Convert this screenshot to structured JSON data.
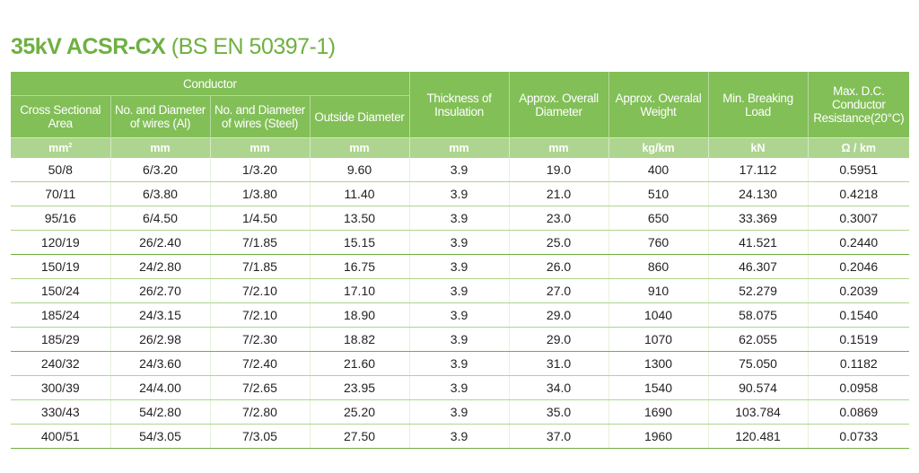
{
  "title": {
    "bold": "35kV ACSR-CX",
    "normal": " (BS EN 50397-1)"
  },
  "colors": {
    "title_green": "#6fb041",
    "header_bg": "#82bf57",
    "unit_bg": "#aed58f"
  },
  "headers": {
    "conductor_group": "Conductor",
    "cross_sectional_area": "Cross Sectional Area",
    "no_diameter_al": "No. and Diameter of wires (Al)",
    "no_diameter_steel": "No. and Diameter of wires (Steel)",
    "outside_diameter": "Outside Diameter",
    "thickness_insulation": "Thickness of Insulation",
    "overall_diameter": "Approx. Overall Diameter",
    "overall_weight": "Approx. Overalal Weight",
    "breaking_load": "Min. Breaking Load",
    "dc_resistance": "Max. D.C. Conductor Resistance(20°C)"
  },
  "units": {
    "area_base": "mm",
    "area_exp": "2",
    "al": "mm",
    "steel": "mm",
    "outside": "mm",
    "insulation": "mm",
    "overall_dia": "mm",
    "weight": "kg/km",
    "load": "kN",
    "resistance": "Ω / km"
  },
  "rows": [
    [
      "50/8",
      "6/3.20",
      "1/3.20",
      "9.60",
      "3.9",
      "19.0",
      "400",
      "17.112",
      "0.5951"
    ],
    [
      "70/11",
      "6/3.80",
      "1/3.80",
      "11.40",
      "3.9",
      "21.0",
      "510",
      "24.130",
      "0.4218"
    ],
    [
      "95/16",
      "6/4.50",
      "1/4.50",
      "13.50",
      "3.9",
      "23.0",
      "650",
      "33.369",
      "0.3007"
    ],
    [
      "120/19",
      "26/2.40",
      "7/1.85",
      "15.15",
      "3.9",
      "25.0",
      "760",
      "41.521",
      "0.2440"
    ],
    [
      "150/19",
      "24/2.80",
      "7/1.85",
      "16.75",
      "3.9",
      "26.0",
      "860",
      "46.307",
      "0.2046"
    ],
    [
      "150/24",
      "26/2.70",
      "7/2.10",
      "17.10",
      "3.9",
      "27.0",
      "910",
      "52.279",
      "0.2039"
    ],
    [
      "185/24",
      "24/3.15",
      "7/2.10",
      "18.90",
      "3.9",
      "29.0",
      "1040",
      "58.075",
      "0.1540"
    ],
    [
      "185/29",
      "26/2.98",
      "7/2.30",
      "18.82",
      "3.9",
      "29.0",
      "1070",
      "62.055",
      "0.1519"
    ],
    [
      "240/32",
      "24/3.60",
      "7/2.40",
      "21.60",
      "3.9",
      "31.0",
      "1300",
      "75.050",
      "0.1182"
    ],
    [
      "300/39",
      "24/4.00",
      "7/2.65",
      "23.95",
      "3.9",
      "34.0",
      "1540",
      "90.574",
      "0.0958"
    ],
    [
      "330/43",
      "54/2.80",
      "7/2.80",
      "25.20",
      "3.9",
      "35.0",
      "1690",
      "103.784",
      "0.0869"
    ],
    [
      "400/51",
      "54/3.05",
      "7/3.05",
      "27.50",
      "3.9",
      "37.0",
      "1960",
      "120.481",
      "0.0733"
    ]
  ]
}
